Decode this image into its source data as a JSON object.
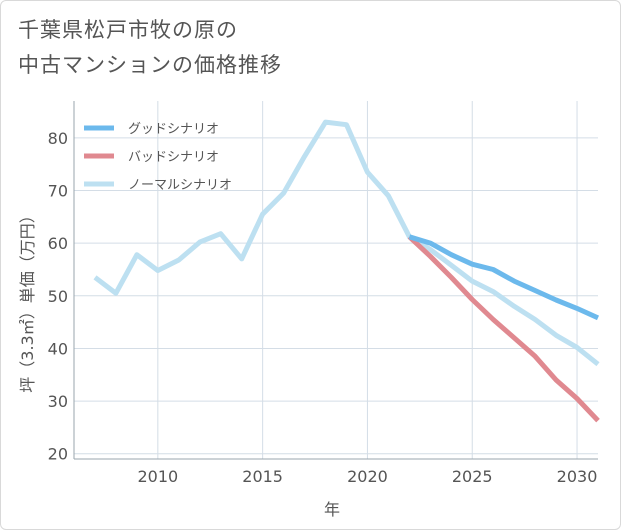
{
  "title_lines": [
    "千葉県松戸市牧の原の",
    "中古マンションの価格推移"
  ],
  "chart_data": {
    "type": "line",
    "title": "千葉県松戸市牧の原の中古マンションの価格推移",
    "xlabel": "年",
    "ylabel": "坪（3.3㎡）単価（万円）",
    "xlim": [
      2006,
      2031
    ],
    "ylim": [
      19,
      87
    ],
    "xticks": [
      2010,
      2015,
      2020,
      2025,
      2030
    ],
    "yticks": [
      20,
      30,
      40,
      50,
      60,
      70,
      80
    ],
    "grid": true,
    "legend_position": "top-left",
    "series": [
      {
        "name": "グッドシナリオ",
        "color": "#6cb9ec",
        "x": [
          2022,
          2023,
          2024,
          2025,
          2026,
          2027,
          2028,
          2029,
          2030,
          2031
        ],
        "y": [
          61.2,
          60.0,
          57.8,
          56.0,
          55.0,
          52.8,
          51.0,
          49.2,
          47.6,
          45.8
        ]
      },
      {
        "name": "バッドシナリオ",
        "color": "#e08990",
        "x": [
          2022,
          2023,
          2024,
          2025,
          2026,
          2027,
          2028,
          2029,
          2030,
          2031
        ],
        "y": [
          61.2,
          57.5,
          53.5,
          49.3,
          45.5,
          42.0,
          38.5,
          34.0,
          30.5,
          26.3
        ]
      },
      {
        "name": "ノーマルシナリオ",
        "color": "#bde0f1",
        "x": [
          2007,
          2008,
          2009,
          2010,
          2011,
          2012,
          2013,
          2014,
          2015,
          2016,
          2017,
          2018,
          2019,
          2020,
          2021,
          2022,
          2023,
          2024,
          2025,
          2026,
          2027,
          2028,
          2029,
          2030,
          2031
        ],
        "y": [
          53.5,
          50.5,
          57.8,
          54.8,
          56.8,
          60.2,
          61.8,
          57.0,
          65.5,
          69.5,
          76.5,
          83.0,
          82.5,
          73.5,
          69.0,
          61.2,
          58.8,
          55.8,
          52.8,
          50.8,
          48.0,
          45.5,
          42.5,
          40.2,
          37.0
        ]
      }
    ]
  }
}
